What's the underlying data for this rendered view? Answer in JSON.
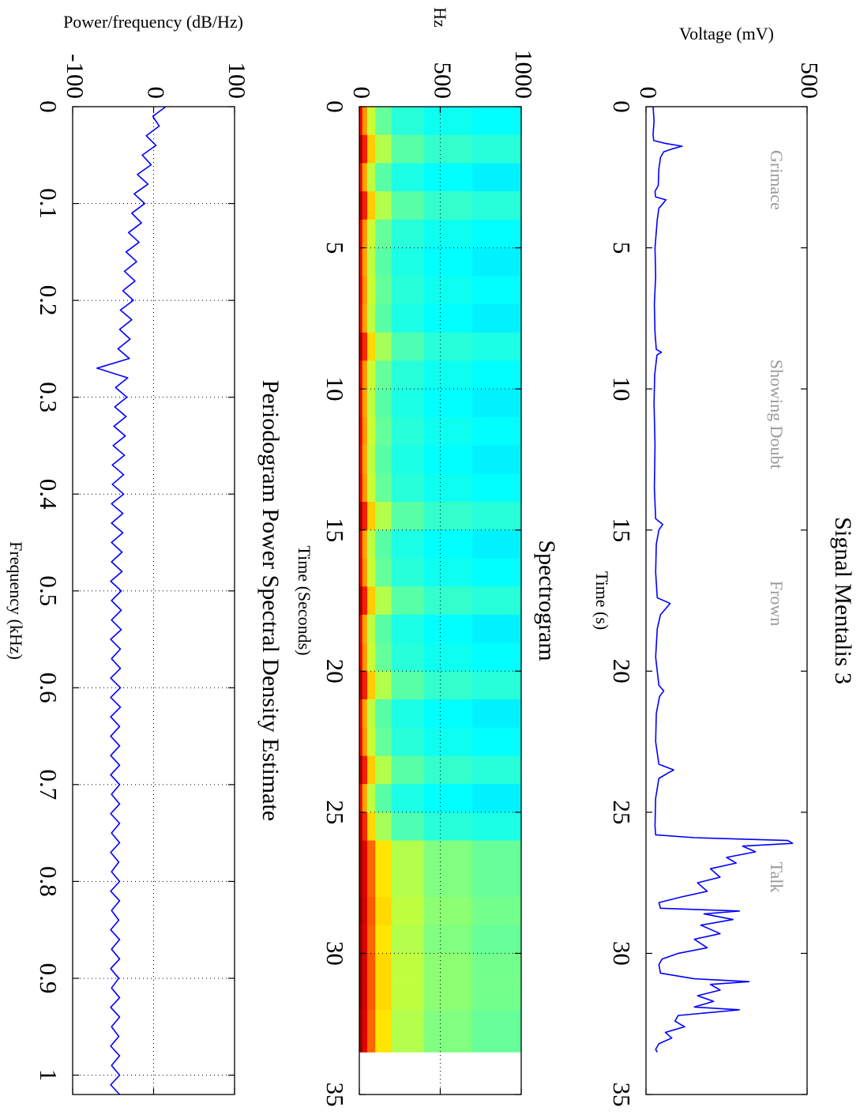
{
  "chart_data": [
    {
      "type": "line",
      "title": "Signal Mentalis 3",
      "x_label": "Time (s)",
      "y_label": "Voltage (mV)",
      "xlim": [
        0,
        35
      ],
      "xticks": [
        0,
        5,
        10,
        15,
        20,
        25,
        30,
        35
      ],
      "ylim": [
        0,
        500
      ],
      "yticks": [
        0,
        500
      ],
      "grid": false,
      "series": [
        {
          "color": "#0000ff",
          "x": [
            0,
            0.5,
            1,
            1.2,
            1.3,
            1.4,
            1.5,
            1.6,
            1.8,
            2.2,
            2.8,
            3,
            3.2,
            3.3,
            3.4,
            3.6,
            4,
            5,
            6,
            7,
            8,
            8.6,
            8.7,
            8.8,
            9.5,
            10.5,
            12,
            13.5,
            14.6,
            14.8,
            15,
            15.5,
            16.5,
            17.4,
            17.6,
            17.8,
            18,
            18.5,
            19.5,
            20.5,
            20.7,
            20.9,
            21.5,
            22.5,
            23.3,
            23.5,
            23.6,
            23.8,
            24.5,
            25.5,
            25.8,
            25.9,
            26,
            26.1,
            26.2,
            26.4,
            26.6,
            26.8,
            27,
            27.3,
            27.5,
            27.8,
            28,
            28.2,
            28.4,
            28.5,
            28.6,
            28.8,
            29,
            29.3,
            29.5,
            29.8,
            30,
            30.2,
            30.4,
            30.7,
            30.9,
            31,
            31.1,
            31.3,
            31.5,
            31.7,
            31.9,
            32,
            32.2,
            32.4,
            32.6,
            32.8,
            33,
            33.2,
            33.4,
            33.5
          ],
          "values": [
            22,
            25,
            22,
            24,
            60,
            112,
            80,
            55,
            45,
            40,
            38,
            28,
            30,
            62,
            55,
            40,
            35,
            28,
            30,
            26,
            28,
            32,
            48,
            34,
            27,
            25,
            28,
            26,
            30,
            52,
            40,
            32,
            30,
            35,
            75,
            60,
            45,
            35,
            30,
            40,
            55,
            42,
            32,
            30,
            40,
            86,
            70,
            40,
            30,
            28,
            30,
            150,
            440,
            455,
            300,
            340,
            250,
            280,
            200,
            230,
            160,
            190,
            110,
            40,
            45,
            290,
            180,
            270,
            170,
            230,
            150,
            190,
            100,
            50,
            40,
            45,
            150,
            320,
            200,
            230,
            160,
            210,
            150,
            290,
            100,
            90,
            120,
            60,
            80,
            40,
            30,
            35
          ]
        }
      ],
      "annotation_color": "#999999",
      "annotations": [
        {
          "text": "Grimace",
          "x": 2.6,
          "y": 400
        },
        {
          "text": "Showing Doubt",
          "x": 10.9,
          "y": 400
        },
        {
          "text": "Frown",
          "x": 17.6,
          "y": 400
        },
        {
          "text": "Talk",
          "x": 27.3,
          "y": 400
        }
      ]
    },
    {
      "type": "heatmap",
      "title": "Spectrogram",
      "x_label": "Time (Seconds)",
      "y_label": "Hz",
      "xlim": [
        0,
        35
      ],
      "xticks": [
        0,
        5,
        10,
        15,
        20,
        25,
        30,
        35
      ],
      "ylim": [
        0,
        1000
      ],
      "yticks": [
        0,
        500,
        1000
      ],
      "grid": true,
      "colormap": "jet",
      "clim": [
        -80,
        0
      ],
      "x_bins": [
        0,
        1,
        2,
        3,
        4,
        5,
        6,
        7,
        8,
        9,
        10,
        11,
        12,
        13,
        14,
        15,
        16,
        17,
        18,
        19,
        20,
        21,
        22,
        23,
        24,
        25,
        26,
        27,
        28,
        29,
        30,
        31,
        32,
        33,
        33.5
      ],
      "y_bins": [
        0,
        20,
        50,
        100,
        200,
        400,
        700,
        1000
      ],
      "values": [
        [
          -10,
          -3,
          -11,
          -3,
          -10,
          -11,
          -10,
          -11,
          -4,
          -10,
          -11,
          -10,
          -11,
          -10,
          -3,
          -11,
          -10,
          -3,
          -11,
          -10,
          -3,
          -11,
          -10,
          -3,
          -11,
          -4,
          -2,
          -2,
          -1,
          -2,
          -1,
          -1,
          -2,
          -2
        ],
        [
          -22,
          -12,
          -23,
          -12,
          -22,
          -23,
          -22,
          -23,
          -13,
          -22,
          -23,
          -22,
          -23,
          -22,
          -12,
          -23,
          -22,
          -12,
          -23,
          -22,
          -12,
          -23,
          -22,
          -12,
          -23,
          -13,
          -8,
          -8,
          -7,
          -8,
          -7,
          -7,
          -8,
          -8
        ],
        [
          -34,
          -26,
          -35,
          -26,
          -34,
          -35,
          -34,
          -35,
          -27,
          -34,
          -35,
          -34,
          -35,
          -34,
          -26,
          -35,
          -34,
          -26,
          -35,
          -34,
          -26,
          -35,
          -34,
          -26,
          -35,
          -27,
          -18,
          -18,
          -17,
          -18,
          -17,
          -17,
          -18,
          -18
        ],
        [
          -42,
          -36,
          -43,
          -36,
          -42,
          -43,
          -42,
          -43,
          -37,
          -42,
          -43,
          -42,
          -43,
          -42,
          -36,
          -43,
          -42,
          -36,
          -43,
          -42,
          -36,
          -43,
          -42,
          -36,
          -43,
          -37,
          -28,
          -28,
          -27,
          -28,
          -27,
          -27,
          -28,
          -28
        ],
        [
          -47,
          -43,
          -48,
          -43,
          -47,
          -48,
          -47,
          -48,
          -44,
          -47,
          -48,
          -47,
          -48,
          -47,
          -43,
          -48,
          -47,
          -43,
          -48,
          -47,
          -43,
          -48,
          -47,
          -43,
          -48,
          -44,
          -36,
          -36,
          -35,
          -36,
          -35,
          -35,
          -36,
          -36
        ],
        [
          -49,
          -46,
          -50,
          -46,
          -49,
          -50,
          -49,
          -50,
          -47,
          -49,
          -50,
          -49,
          -50,
          -49,
          -46,
          -50,
          -49,
          -46,
          -50,
          -49,
          -46,
          -50,
          -49,
          -46,
          -50,
          -47,
          -40,
          -40,
          -39,
          -40,
          -39,
          -39,
          -40,
          -40
        ],
        [
          -50,
          -47,
          -51,
          -47,
          -50,
          -51,
          -50,
          -51,
          -48,
          -50,
          -51,
          -50,
          -51,
          -50,
          -47,
          -51,
          -50,
          -47,
          -51,
          -50,
          -47,
          -51,
          -50,
          -47,
          -51,
          -48,
          -42,
          -42,
          -41,
          -42,
          -41,
          -41,
          -42,
          -42
        ]
      ]
    },
    {
      "type": "line",
      "title": "Periodogram Power Spectral Density Estimate",
      "x_label": "Frequency (kHz)",
      "y_label": "Power/frequency (dB/Hz)",
      "xlim": [
        0,
        1.02
      ],
      "xticks": [
        0,
        0.1,
        0.2,
        0.3,
        0.4,
        0.5,
        0.6,
        0.7,
        0.8,
        0.9,
        1
      ],
      "ylim": [
        -100,
        100
      ],
      "yticks": [
        -100,
        0,
        100
      ],
      "grid": true,
      "series": [
        {
          "color": "#0000ff",
          "x": [
            0,
            0.01,
            0.02,
            0.03,
            0.04,
            0.05,
            0.06,
            0.07,
            0.08,
            0.09,
            0.1,
            0.11,
            0.12,
            0.13,
            0.14,
            0.15,
            0.16,
            0.17,
            0.18,
            0.19,
            0.2,
            0.21,
            0.22,
            0.23,
            0.24,
            0.25,
            0.26,
            0.27,
            0.28,
            0.29,
            0.3,
            0.31,
            0.32,
            0.33,
            0.34,
            0.35,
            0.36,
            0.37,
            0.38,
            0.39,
            0.4,
            0.41,
            0.42,
            0.43,
            0.44,
            0.45,
            0.46,
            0.47,
            0.48,
            0.49,
            0.5,
            0.51,
            0.52,
            0.53,
            0.54,
            0.55,
            0.56,
            0.57,
            0.58,
            0.59,
            0.6,
            0.61,
            0.62,
            0.63,
            0.64,
            0.65,
            0.66,
            0.67,
            0.68,
            0.69,
            0.7,
            0.71,
            0.72,
            0.73,
            0.74,
            0.75,
            0.76,
            0.77,
            0.78,
            0.79,
            0.8,
            0.81,
            0.82,
            0.83,
            0.84,
            0.85,
            0.86,
            0.87,
            0.88,
            0.89,
            0.9,
            0.91,
            0.92,
            0.93,
            0.94,
            0.95,
            0.96,
            0.97,
            0.98,
            0.99,
            1,
            1.01,
            1.02
          ],
          "values": [
            15,
            -1,
            7,
            -9,
            3,
            -14,
            -3,
            -20,
            -7,
            -24,
            -11,
            -27,
            -15,
            -31,
            -18,
            -34,
            -21,
            -36,
            -23,
            -38,
            -25,
            -41,
            -27,
            -42,
            -29,
            -44,
            -30,
            -70,
            -32,
            -47,
            -33,
            -48,
            -34,
            -49,
            -35,
            -50,
            -36,
            -51,
            -37,
            -51,
            -37,
            -52,
            -38,
            -52,
            -38,
            -52,
            -39,
            -52,
            -39,
            -53,
            -40,
            -52,
            -40,
            -52,
            -40,
            -53,
            -41,
            -52,
            -41,
            -53,
            -41,
            -53,
            -41,
            -53,
            -42,
            -53,
            -42,
            -53,
            -42,
            -53,
            -42,
            -52,
            -42,
            -53,
            -42,
            -52,
            -42,
            -53,
            -43,
            -52,
            -42,
            -53,
            -42,
            -52,
            -43,
            -53,
            -42,
            -52,
            -42,
            -53,
            -43,
            -52,
            -42,
            -53,
            -42,
            -52,
            -43,
            -53,
            -42,
            -52,
            -42,
            -53,
            -42
          ]
        }
      ]
    }
  ]
}
